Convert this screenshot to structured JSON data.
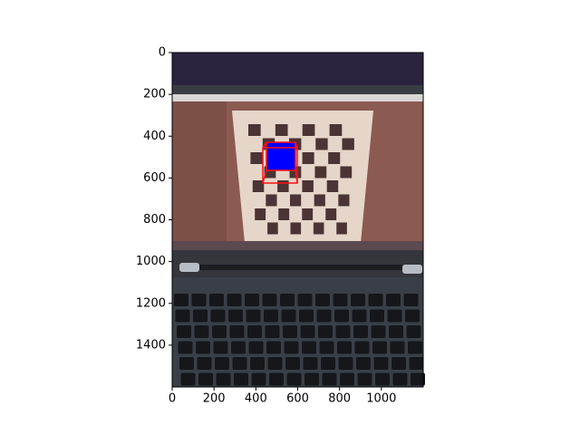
{
  "chart_data": {
    "type": "image",
    "xlim": [
      0,
      1200
    ],
    "ylim": [
      1600,
      0
    ],
    "xticks": [
      0,
      200,
      400,
      600,
      800,
      1000
    ],
    "yticks": [
      0,
      200,
      400,
      600,
      800,
      1000,
      1200,
      1400
    ]
  }
}
